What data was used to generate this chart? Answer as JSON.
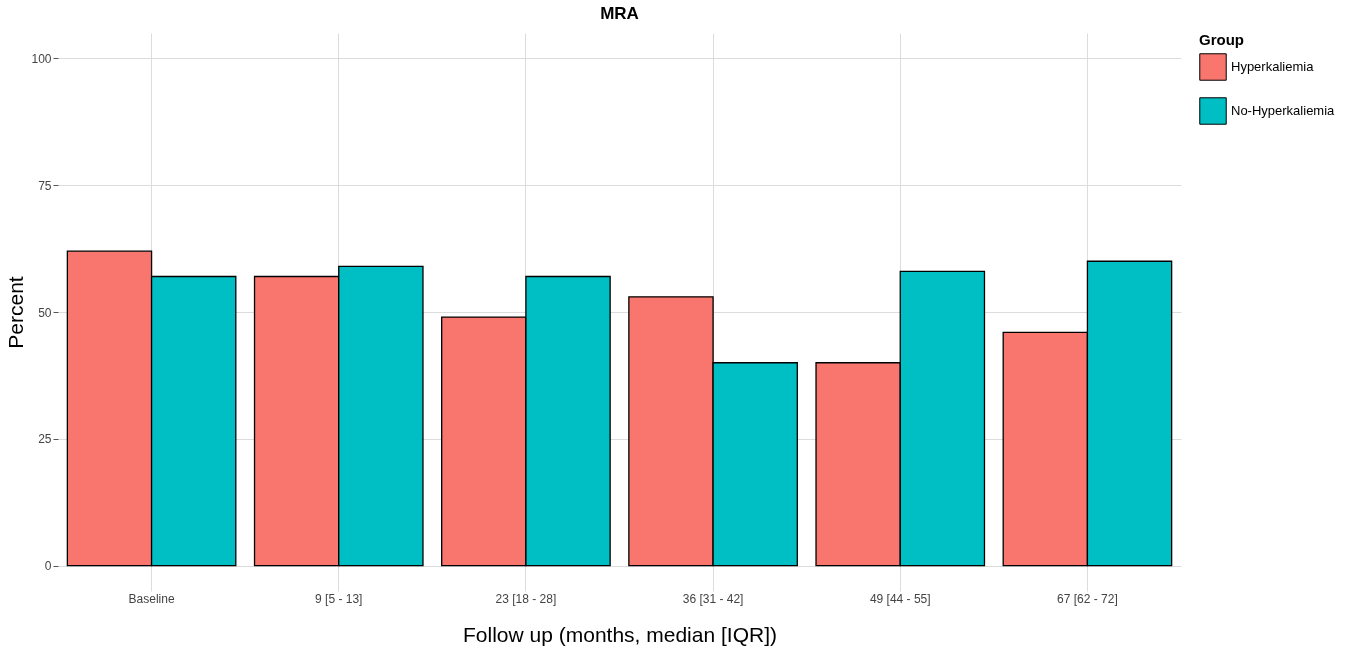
{
  "chart_data": {
    "type": "bar",
    "title": "MRA",
    "xlabel": "Follow up (months, median [IQR])",
    "ylabel": "Percent",
    "legend_title": "Group",
    "categories": [
      "Baseline",
      "9 [5 - 13]",
      "23 [18 - 28]",
      "36 [31 - 42]",
      "49 [44 - 55]",
      "67 [62 - 72]"
    ],
    "series": [
      {
        "name": "Hyperkaliemia",
        "color": "#f8766d",
        "values": [
          62,
          57,
          49,
          53,
          40,
          46
        ]
      },
      {
        "name": "No-Hyperkaliemia",
        "color": "#00bfc4",
        "values": [
          57,
          59,
          57,
          40,
          58,
          60
        ]
      }
    ],
    "ylim": [
      -5,
      105
    ],
    "yticks": [
      0,
      25,
      50,
      75,
      100
    ],
    "grid": true,
    "legend": "right"
  }
}
